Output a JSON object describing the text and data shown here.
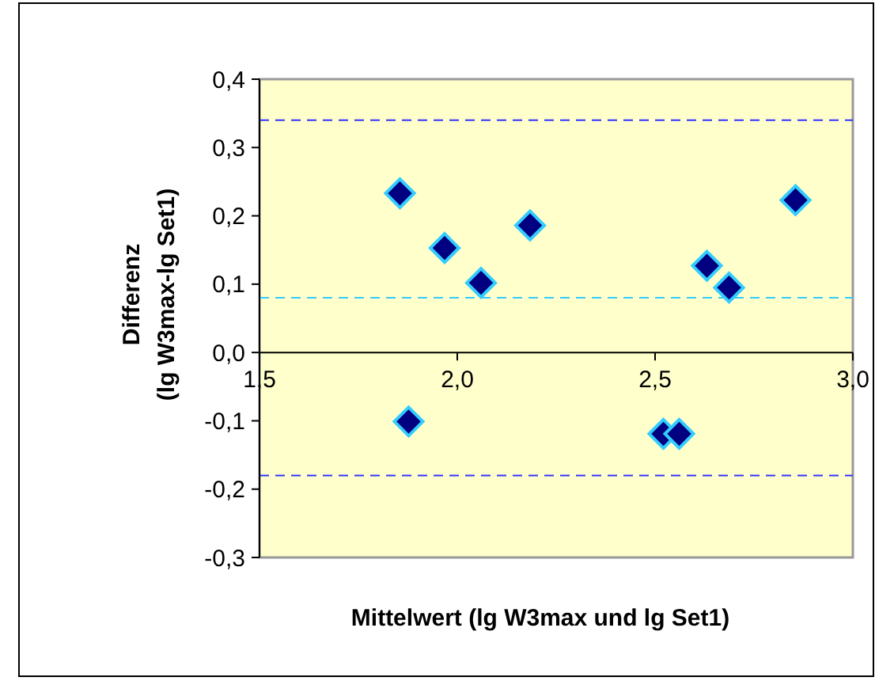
{
  "chart_data": {
    "type": "scatter",
    "xlabel": "Mittelwert (lg W3max und lg Set1)",
    "ylabel": "Differenz\n(lg W3max-lg Set1)",
    "x": [
      1.855,
      1.968,
      2.06,
      2.184,
      1.877,
      2.521,
      2.561,
      2.631,
      2.687,
      2.855
    ],
    "values": [
      0.233,
      0.153,
      0.102,
      0.186,
      -0.101,
      -0.119,
      -0.119,
      0.127,
      0.095,
      0.223
    ],
    "color": "#000080",
    "marker": "diamond",
    "xlim": [
      1.5,
      3.0
    ],
    "xticks": [
      {
        "value": 1.5,
        "label": "1,5"
      },
      {
        "value": 2.0,
        "label": "2,0"
      },
      {
        "value": 2.5,
        "label": "2,5"
      },
      {
        "value": 3.0,
        "label": "3,0"
      }
    ],
    "ylim": [
      -0.3,
      0.4
    ],
    "yticks": [
      {
        "value": -0.3,
        "label": "-0,3"
      },
      {
        "value": -0.2,
        "label": "-0,2"
      },
      {
        "value": -0.1,
        "label": "-0,1"
      },
      {
        "value": 0,
        "label": "0,0"
      },
      {
        "value": 0.1,
        "label": "0,1"
      },
      {
        "value": 0.2,
        "label": "0,2"
      },
      {
        "value": 0.3,
        "label": "0,3"
      },
      {
        "value": 0.4,
        "label": "0,4"
      }
    ],
    "ref_lines": [
      {
        "axis": "y",
        "value": 0.34,
        "color": "#3333ff",
        "line_style": "dashed"
      },
      {
        "axis": "y",
        "value": 0.08,
        "color": "#33ccff",
        "line_style": "dashed"
      },
      {
        "axis": "y",
        "value": -0.18,
        "color": "#3333ff",
        "line_style": "dashed"
      }
    ],
    "grid": false
  }
}
